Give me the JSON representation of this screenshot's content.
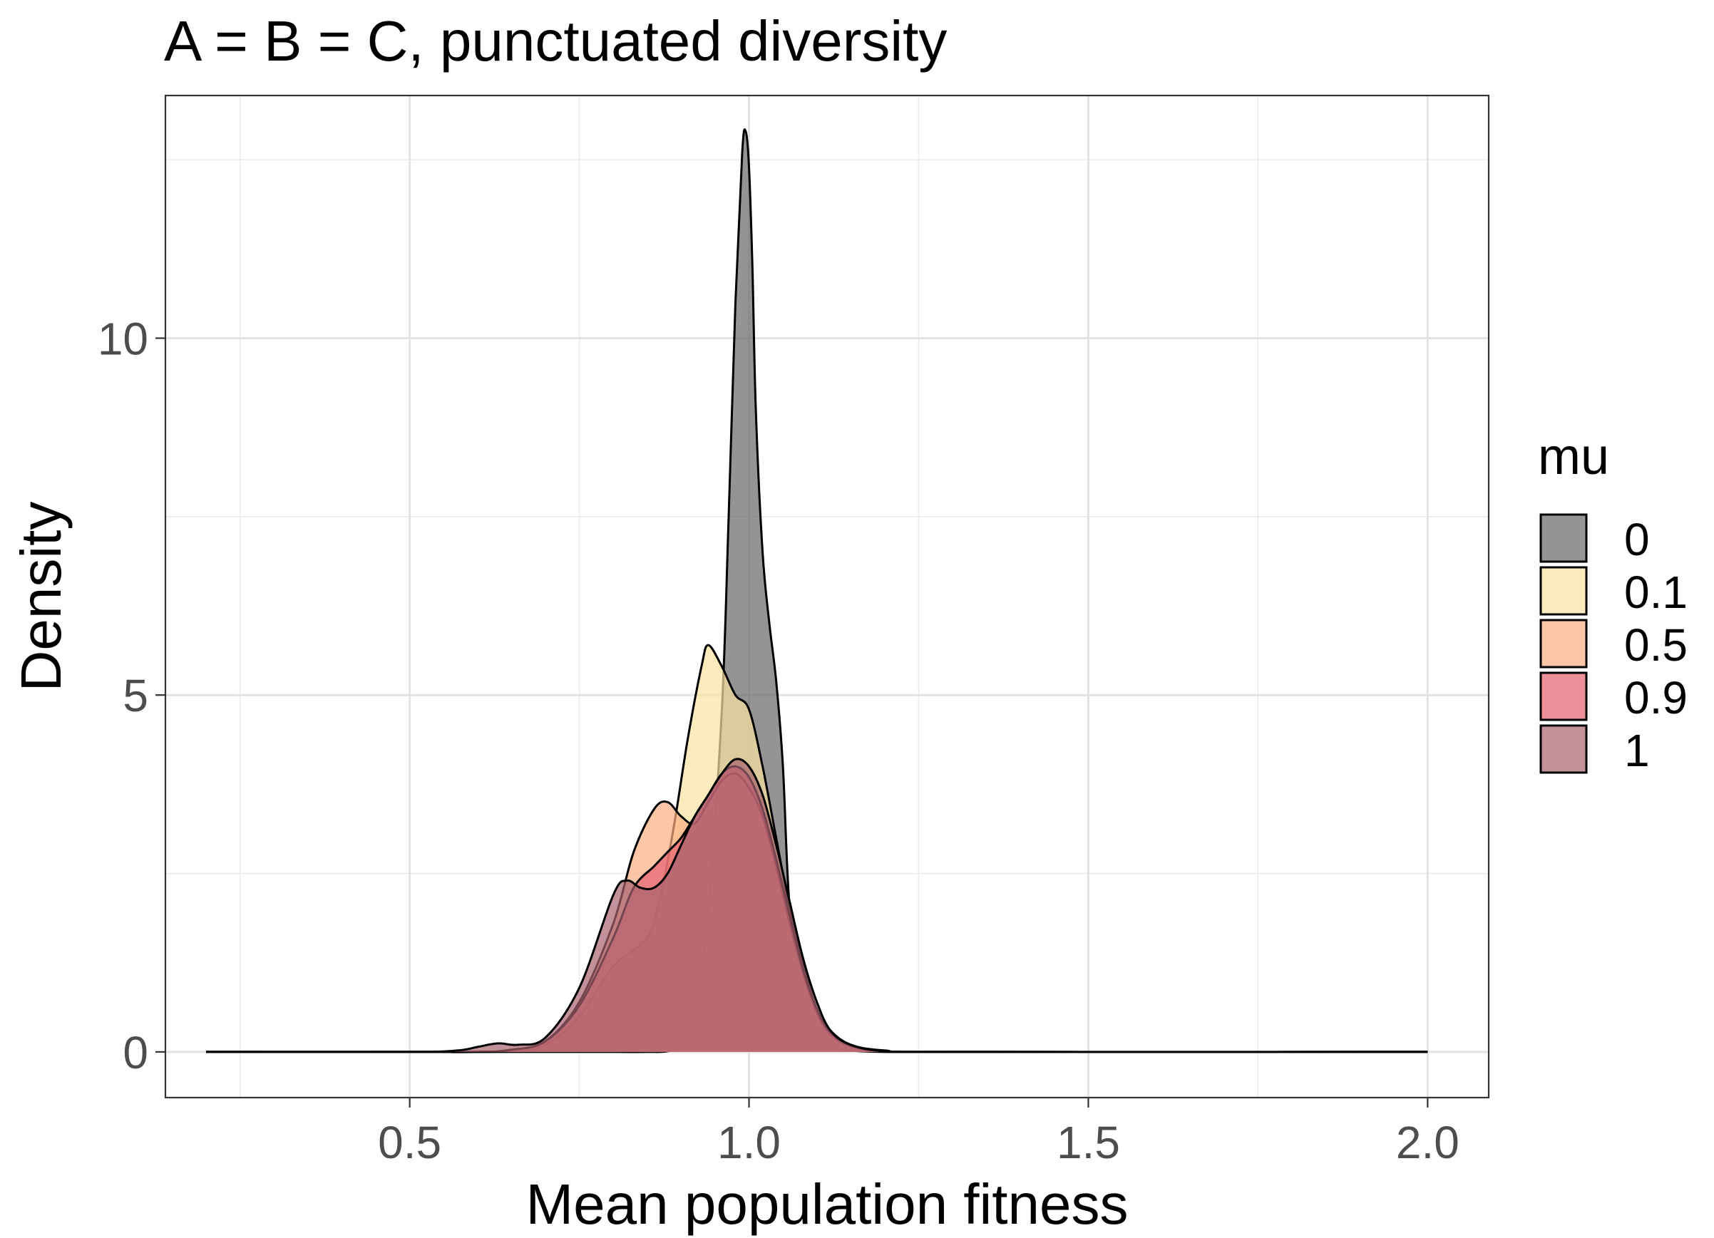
{
  "chart_data": {
    "type": "area",
    "title": "A = B = C, punctuated diversity",
    "xlabel": "Mean population fitness",
    "ylabel": "Density",
    "xlim": [
      0.14,
      2.09
    ],
    "ylim": [
      -0.64,
      13.4
    ],
    "x_ticks": [
      0.5,
      1.0,
      1.5,
      2.0
    ],
    "x_tick_labels": [
      "0.5",
      "1.0",
      "1.5",
      "2.0"
    ],
    "x_minor_gridlines": [
      0.25,
      0.75,
      1.25,
      1.75
    ],
    "y_ticks": [
      0,
      5,
      10
    ],
    "y_tick_labels": [
      "0",
      "5",
      "10"
    ],
    "y_minor_gridlines": [
      2.5,
      7.5,
      12.5
    ],
    "grid": true,
    "legend": {
      "title": "mu",
      "position": "right"
    },
    "series": [
      {
        "name": "0",
        "color": "#666666",
        "x": [
          0.2,
          0.5,
          0.55,
          0.6,
          0.65,
          0.7,
          0.75,
          0.8,
          0.85,
          0.88,
          0.9,
          0.92,
          0.94,
          0.96,
          0.97,
          0.98,
          0.99,
          0.995,
          1.0,
          1.005,
          1.01,
          1.02,
          1.03,
          1.04,
          1.05,
          1.06,
          1.08,
          1.1,
          1.12,
          1.15,
          1.2,
          1.3,
          2.0
        ],
        "y": [
          0,
          0,
          0,
          0,
          0,
          0,
          0,
          0,
          0,
          0.01,
          0.1,
          0.6,
          2.0,
          4.8,
          7.5,
          10.5,
          12.6,
          12.9,
          12.4,
          11.0,
          9.0,
          7.0,
          6.0,
          5.2,
          4.0,
          2.0,
          0.7,
          0.25,
          0.08,
          0.02,
          0,
          0,
          0
        ]
      },
      {
        "name": "0.1",
        "color": "#FBE3A0",
        "x": [
          0.2,
          0.5,
          0.6,
          0.65,
          0.7,
          0.75,
          0.8,
          0.85,
          0.87,
          0.89,
          0.91,
          0.93,
          0.94,
          0.96,
          0.98,
          1.0,
          1.02,
          1.04,
          1.06,
          1.08,
          1.1,
          1.12,
          1.15,
          1.2,
          1.3,
          2.0
        ],
        "y": [
          0,
          0,
          0,
          0.02,
          0.1,
          0.5,
          1.2,
          1.6,
          2.2,
          3.2,
          4.4,
          5.4,
          5.7,
          5.4,
          5.0,
          4.8,
          4.0,
          3.0,
          2.0,
          1.2,
          0.6,
          0.3,
          0.1,
          0.02,
          0,
          0
        ]
      },
      {
        "name": "0.5",
        "color": "#FBAE82",
        "x": [
          0.2,
          0.5,
          0.6,
          0.65,
          0.7,
          0.75,
          0.8,
          0.83,
          0.86,
          0.88,
          0.9,
          0.92,
          0.94,
          0.96,
          0.98,
          1.0,
          1.02,
          1.04,
          1.06,
          1.08,
          1.1,
          1.12,
          1.15,
          1.2,
          1.3,
          2.0
        ],
        "y": [
          0,
          0,
          0,
          0.03,
          0.15,
          0.7,
          1.8,
          2.8,
          3.4,
          3.5,
          3.3,
          3.2,
          3.5,
          3.8,
          3.9,
          3.7,
          3.3,
          2.6,
          1.8,
          1.1,
          0.55,
          0.25,
          0.08,
          0.01,
          0,
          0
        ]
      },
      {
        "name": "0.9",
        "color": "#E5616E",
        "x": [
          0.2,
          0.5,
          0.6,
          0.65,
          0.7,
          0.75,
          0.8,
          0.83,
          0.86,
          0.88,
          0.9,
          0.92,
          0.94,
          0.96,
          0.98,
          1.0,
          1.02,
          1.04,
          1.06,
          1.08,
          1.1,
          1.12,
          1.15,
          1.2,
          1.3,
          2.0
        ],
        "y": [
          0,
          0,
          0,
          0.03,
          0.15,
          0.65,
          1.6,
          2.3,
          2.6,
          2.8,
          3.0,
          3.3,
          3.6,
          3.9,
          4.0,
          3.85,
          3.4,
          2.7,
          1.9,
          1.15,
          0.6,
          0.28,
          0.09,
          0.01,
          0,
          0
        ]
      },
      {
        "name": "1",
        "color": "#A8626F",
        "x": [
          0.2,
          0.5,
          0.57,
          0.6,
          0.63,
          0.66,
          0.7,
          0.75,
          0.8,
          0.82,
          0.84,
          0.86,
          0.88,
          0.9,
          0.92,
          0.94,
          0.96,
          0.98,
          1.0,
          1.02,
          1.04,
          1.06,
          1.08,
          1.1,
          1.12,
          1.15,
          1.2,
          1.3,
          2.0
        ],
        "y": [
          0,
          0,
          0.02,
          0.07,
          0.12,
          0.1,
          0.2,
          0.9,
          2.2,
          2.4,
          2.3,
          2.3,
          2.5,
          2.9,
          3.3,
          3.6,
          3.9,
          4.1,
          4.0,
          3.6,
          2.9,
          2.1,
          1.3,
          0.7,
          0.3,
          0.1,
          0.01,
          0,
          0
        ]
      }
    ]
  }
}
